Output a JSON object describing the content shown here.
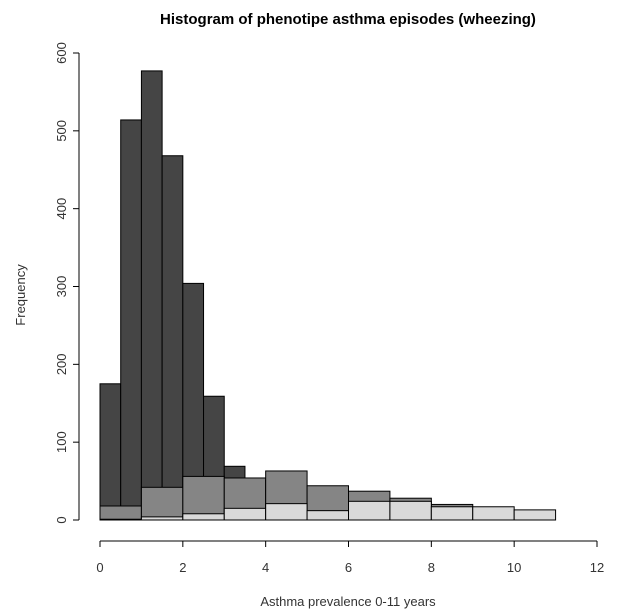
{
  "chart_data": {
    "type": "bar",
    "title": "Histogram of phenotipe asthma episodes (wheezing)",
    "xlabel": "Asthma prevalence 0-11 years",
    "ylabel": "Frequency",
    "xlim": [
      0,
      12
    ],
    "ylim": [
      0,
      600
    ],
    "x_ticks": [
      0,
      2,
      4,
      6,
      8,
      10,
      12
    ],
    "y_ticks": [
      0,
      100,
      200,
      300,
      400,
      500,
      600
    ],
    "grid": false,
    "series": [
      {
        "fill": "#454545",
        "bins": [
          {
            "x0": 0,
            "x1": 0.5,
            "y": 175
          },
          {
            "x0": 0.5,
            "x1": 1,
            "y": 514
          },
          {
            "x0": 1,
            "x1": 1.5,
            "y": 577
          },
          {
            "x0": 1.5,
            "x1": 2,
            "y": 468
          },
          {
            "x0": 2,
            "x1": 2.5,
            "y": 304
          },
          {
            "x0": 2.5,
            "x1": 3,
            "y": 159
          },
          {
            "x0": 3,
            "x1": 3.5,
            "y": 69
          }
        ]
      },
      {
        "fill": "#858585",
        "bins": [
          {
            "x0": 0,
            "x1": 1,
            "y": 18
          },
          {
            "x0": 1,
            "x1": 2,
            "y": 42
          },
          {
            "x0": 2,
            "x1": 3,
            "y": 56
          },
          {
            "x0": 3,
            "x1": 4,
            "y": 54
          },
          {
            "x0": 4,
            "x1": 5,
            "y": 63
          },
          {
            "x0": 5,
            "x1": 6,
            "y": 44
          },
          {
            "x0": 6,
            "x1": 7,
            "y": 37
          },
          {
            "x0": 7,
            "x1": 8,
            "y": 28
          },
          {
            "x0": 8,
            "x1": 9,
            "y": 20
          }
        ]
      },
      {
        "fill": "#d9d9d9",
        "bins": [
          {
            "x0": 0,
            "x1": 1,
            "y": 1
          },
          {
            "x0": 1,
            "x1": 2,
            "y": 4
          },
          {
            "x0": 2,
            "x1": 3,
            "y": 8
          },
          {
            "x0": 3,
            "x1": 4,
            "y": 15
          },
          {
            "x0": 4,
            "x1": 5,
            "y": 21
          },
          {
            "x0": 5,
            "x1": 6,
            "y": 12
          },
          {
            "x0": 6,
            "x1": 7,
            "y": 24
          },
          {
            "x0": 7,
            "x1": 8,
            "y": 24
          },
          {
            "x0": 8,
            "x1": 9,
            "y": 17
          },
          {
            "x0": 9,
            "x1": 10,
            "y": 17
          },
          {
            "x0": 10,
            "x1": 11,
            "y": 13
          }
        ]
      }
    ]
  }
}
